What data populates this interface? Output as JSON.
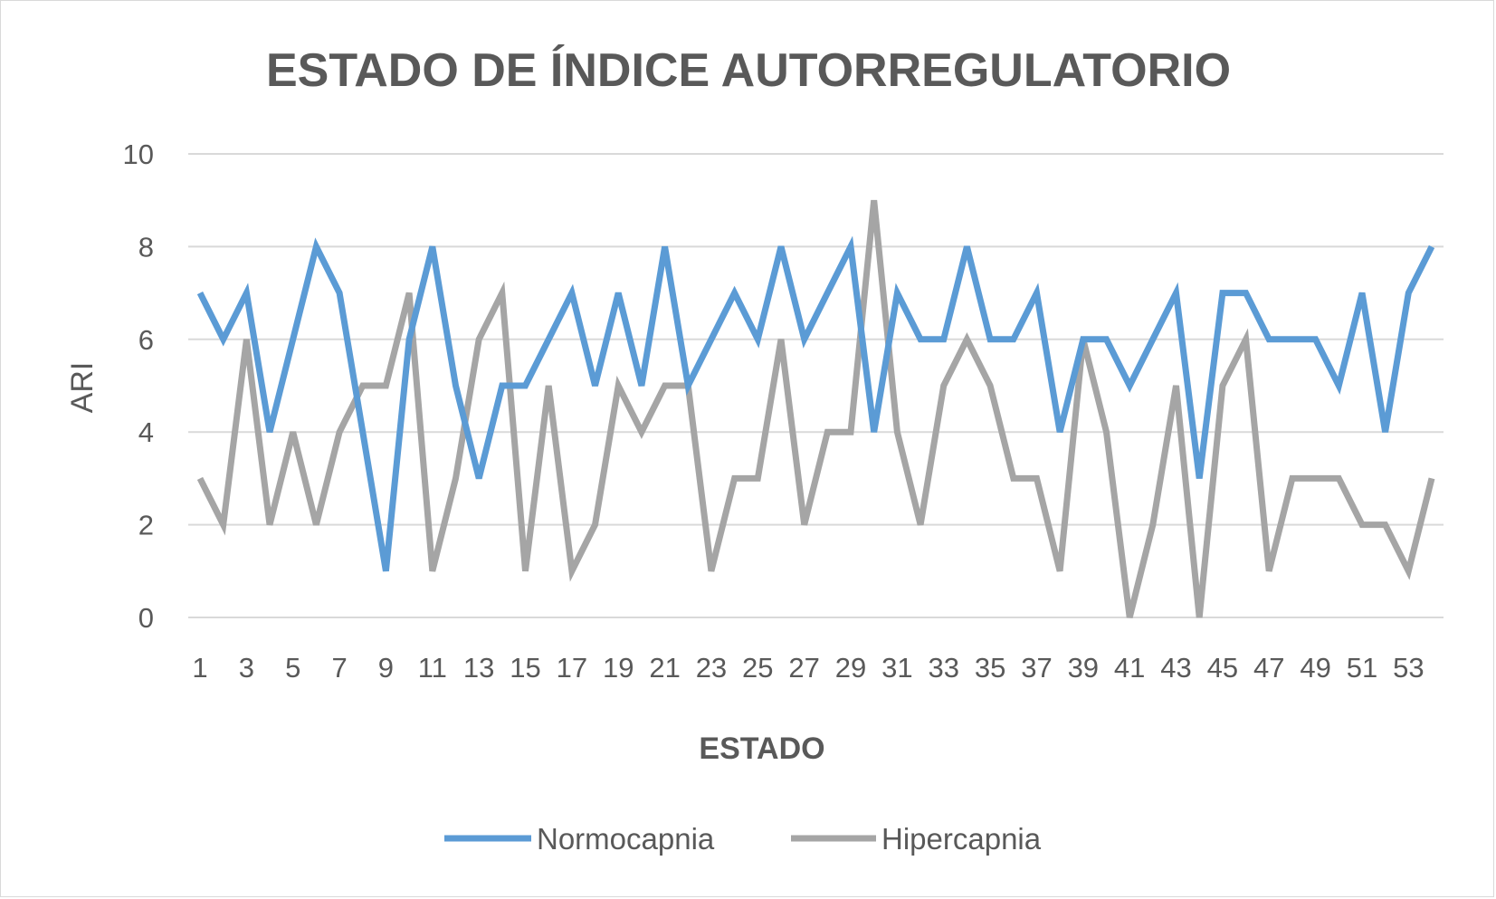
{
  "chart_data": {
    "type": "line",
    "title": "ESTADO DE ÍNDICE AUTORREGULATORIO",
    "xlabel": "ESTADO",
    "ylabel": "ARI",
    "ylim": [
      0,
      10
    ],
    "yticks": [
      0,
      2,
      4,
      6,
      8,
      10
    ],
    "x": [
      1,
      2,
      3,
      4,
      5,
      6,
      7,
      8,
      9,
      10,
      11,
      12,
      13,
      14,
      15,
      16,
      17,
      18,
      19,
      20,
      21,
      22,
      23,
      24,
      25,
      26,
      27,
      28,
      29,
      30,
      31,
      32,
      33,
      34,
      35,
      36,
      37,
      38,
      39,
      40,
      41,
      42,
      43,
      44,
      45,
      46,
      47,
      48,
      49,
      50,
      51,
      52,
      53,
      54
    ],
    "xtick_labels": [
      "1",
      "3",
      "5",
      "7",
      "9",
      "11",
      "13",
      "15",
      "17",
      "19",
      "21",
      "23",
      "25",
      "27",
      "29",
      "31",
      "33",
      "35",
      "37",
      "39",
      "41",
      "43",
      "45",
      "47",
      "49",
      "51",
      "53"
    ],
    "grid": true,
    "legend_position": "bottom",
    "series": [
      {
        "name": "Normocapnia",
        "color": "#5b9bd5",
        "values": [
          7,
          6,
          7,
          4,
          6,
          8,
          7,
          4,
          1,
          6,
          8,
          5,
          3,
          5,
          5,
          6,
          7,
          5,
          7,
          5,
          8,
          5,
          6,
          7,
          6,
          8,
          6,
          7,
          8,
          4,
          7,
          6,
          6,
          8,
          6,
          6,
          7,
          4,
          6,
          6,
          5,
          6,
          7,
          3,
          7,
          7,
          6,
          6,
          6,
          5,
          7,
          4,
          7,
          8
        ]
      },
      {
        "name": "Hipercapnia",
        "color": "#a5a5a5",
        "values": [
          3,
          2,
          6,
          2,
          4,
          2,
          4,
          5,
          5,
          7,
          1,
          3,
          6,
          7,
          1,
          5,
          1,
          2,
          5,
          4,
          5,
          5,
          1,
          3,
          3,
          6,
          2,
          4,
          4,
          9,
          4,
          2,
          5,
          6,
          5,
          3,
          3,
          1,
          6,
          4,
          0,
          2,
          5,
          0,
          5,
          6,
          1,
          3,
          3,
          3,
          2,
          2,
          1,
          3
        ]
      }
    ]
  }
}
